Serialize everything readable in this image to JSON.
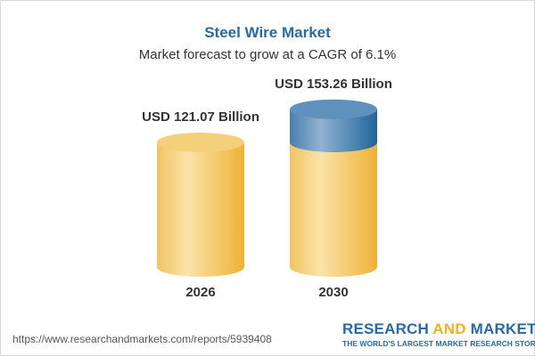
{
  "title": "Steel Wire Market",
  "subtitle": "Market forecast to grow at a CAGR of 6.1%",
  "chart_data": {
    "type": "bar",
    "style": "cylinder",
    "categories": [
      "2026",
      "2030"
    ],
    "values": [
      121.07,
      153.26
    ],
    "unit": "USD Billion",
    "data_labels": [
      "USD 121.07 Billion",
      "USD 153.26 Billion"
    ],
    "colors": {
      "base": "#f2c15a",
      "growth": "#4a82b4"
    }
  },
  "footer": {
    "url": "https://www.researchandmarkets.com/reports/5939408",
    "logo_part1": "RESEARCH ",
    "logo_part2": "AND",
    "logo_part3": " MARKETS",
    "tagline": "THE WORLD'S LARGEST MARKET RESEARCH STORE"
  }
}
